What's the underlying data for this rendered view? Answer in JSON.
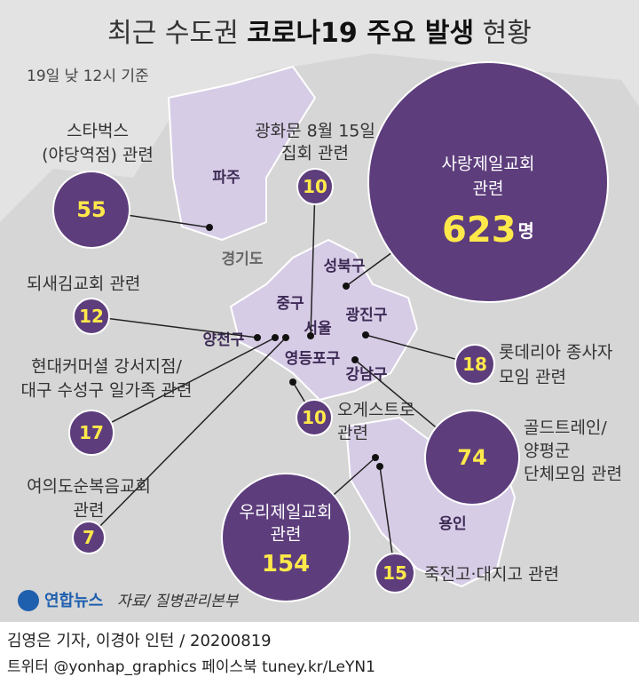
{
  "header": {
    "title": {
      "part1": "최근 수도권",
      "part2": "코로나19 주요 발생",
      "part3": "현황"
    },
    "note": "19일 낮 12시 기준"
  },
  "regions": [
    "파주",
    "경기도",
    "성북구",
    "중구",
    "서울",
    "광진구",
    "양천구",
    "영등포구",
    "강남구",
    "용인"
  ],
  "clusters": [
    {
      "label": [
        "스타벅스",
        "(야당역점) 관련"
      ],
      "value": 55
    },
    {
      "label": [
        "광화문 8월 15일",
        "집회 관련"
      ],
      "value": 10
    },
    {
      "label": [
        "사랑제일교회",
        "관련"
      ],
      "value": 623,
      "unit": "명"
    },
    {
      "label": [
        "되새김교회 관련"
      ],
      "value": 12
    },
    {
      "label": [
        "현대커머셜 강서지점/",
        "대구 수성구 일가족 관련"
      ],
      "value": 17
    },
    {
      "label": [
        "여의도순복음교회",
        "관련"
      ],
      "value": 7
    },
    {
      "label": [
        "오게스트로",
        "관련"
      ],
      "value": 10
    },
    {
      "label": [
        "롯데리아 종사자",
        "모임 관련"
      ],
      "value": 18
    },
    {
      "label": [
        "골드트레인/",
        "양평군",
        "단체모임 관련"
      ],
      "value": 74
    },
    {
      "label": [
        "우리제일교회",
        "관련"
      ],
      "value": 154
    },
    {
      "label": [
        "죽전고·대지고 관련"
      ],
      "value": 15
    }
  ],
  "footer": {
    "logo": "연합뉴스",
    "source": "자료/ 질병관리본부",
    "credit": "김영은 기자, 이경아 인턴 / 20200819",
    "social": "트위터 @yonhap_graphics  페이스북 tuney.kr/LeYN1"
  }
}
